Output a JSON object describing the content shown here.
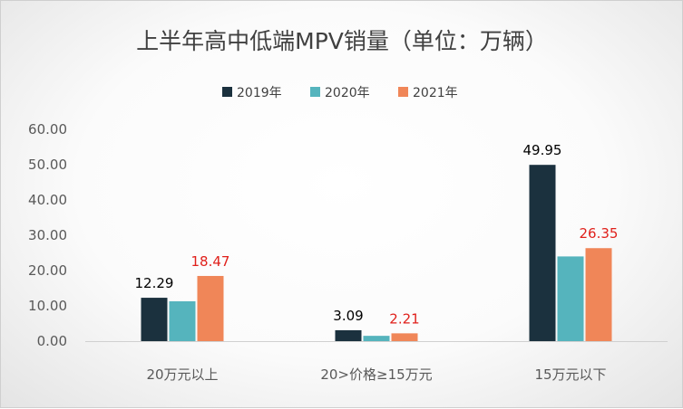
{
  "chart_data": {
    "type": "bar",
    "title": "上半年高中低端MPV销量（单位：万辆）",
    "categories": [
      "20万元以上",
      "20>价格≥15万元",
      "15万元以下"
    ],
    "series": [
      {
        "name": "2019年",
        "color": "#1b313e",
        "values": [
          12.29,
          3.09,
          49.95
        ],
        "label_color": "#000000"
      },
      {
        "name": "2020年",
        "color": "#55b4bd",
        "values": [
          11.3,
          1.5,
          24.0
        ],
        "label_color": null
      },
      {
        "name": "2021年",
        "color": "#f08658",
        "values": [
          18.47,
          2.21,
          26.35
        ],
        "label_color": "#e0201b"
      }
    ],
    "data_labels": {
      "2019年": [
        "12.29",
        "3.09",
        "49.95"
      ],
      "2021年": [
        "18.47",
        "2.21",
        "26.35"
      ]
    },
    "ylim": [
      0,
      60
    ],
    "yticks": [
      "0.00",
      "10.00",
      "20.00",
      "30.00",
      "40.00",
      "50.00",
      "60.00"
    ],
    "grid": false,
    "legend": "top-center"
  }
}
